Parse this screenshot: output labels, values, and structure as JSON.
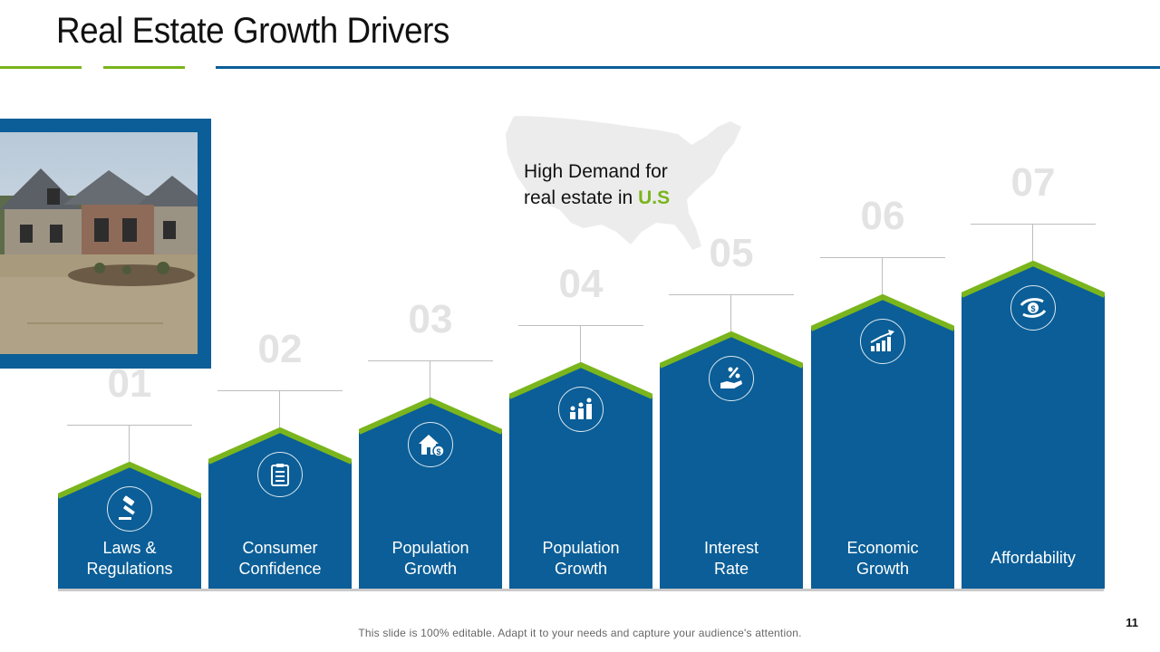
{
  "slide": {
    "title": "Real Estate Growth Drivers",
    "page_number": "11",
    "footer": "This slide is 100% editable. Adapt it to your needs and capture your audience's attention."
  },
  "colors": {
    "brand_blue": "#0b5e97",
    "accent_green": "#7ab51d",
    "number_gray": "#e3e3e3"
  },
  "callout": {
    "line1": "High Demand for",
    "line2_prefix": "real estate in ",
    "line2_highlight": "U.S"
  },
  "drivers": [
    {
      "number": "01",
      "line1": "Laws &",
      "line2": "Regulations",
      "icon": "gavel-icon"
    },
    {
      "number": "02",
      "line1": "Consumer",
      "line2": "Confidence",
      "icon": "clipboard-icon"
    },
    {
      "number": "03",
      "line1": "Population",
      "line2": "Growth",
      "icon": "house-money-icon"
    },
    {
      "number": "04",
      "line1": "Population",
      "line2": "Growth",
      "icon": "people-growth-icon"
    },
    {
      "number": "05",
      "line1": "Interest",
      "line2": "Rate",
      "icon": "percent-hand-icon"
    },
    {
      "number": "06",
      "line1": "Economic",
      "line2": "Growth",
      "icon": "bar-chart-growth-icon"
    },
    {
      "number": "07",
      "line1": "Affordability",
      "line2": "",
      "icon": "hand-coin-icon"
    }
  ]
}
